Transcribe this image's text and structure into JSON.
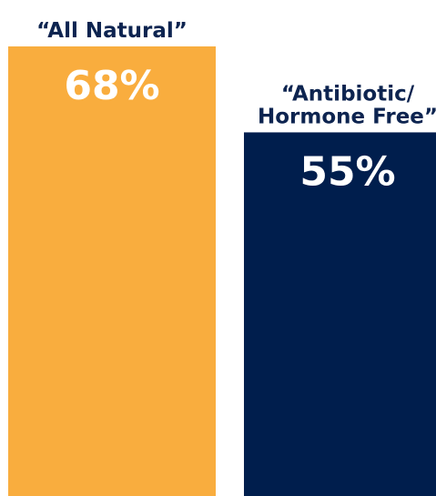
{
  "chart_data": {
    "type": "bar",
    "categories": [
      "“All Natural”",
      "“Antibiotic/ Hormone Free”"
    ],
    "category_lines": [
      [
        "“All Natural”"
      ],
      [
        "“Antibiotic/",
        "Hormone Free”"
      ]
    ],
    "values": [
      68,
      55
    ],
    "value_labels": [
      "68%",
      "55%"
    ],
    "colors": [
      "#f9ad3e",
      "#001e4d"
    ],
    "title": "",
    "xlabel": "",
    "ylabel": "",
    "ylim": [
      0,
      68
    ],
    "grid": false,
    "legend": "none"
  }
}
